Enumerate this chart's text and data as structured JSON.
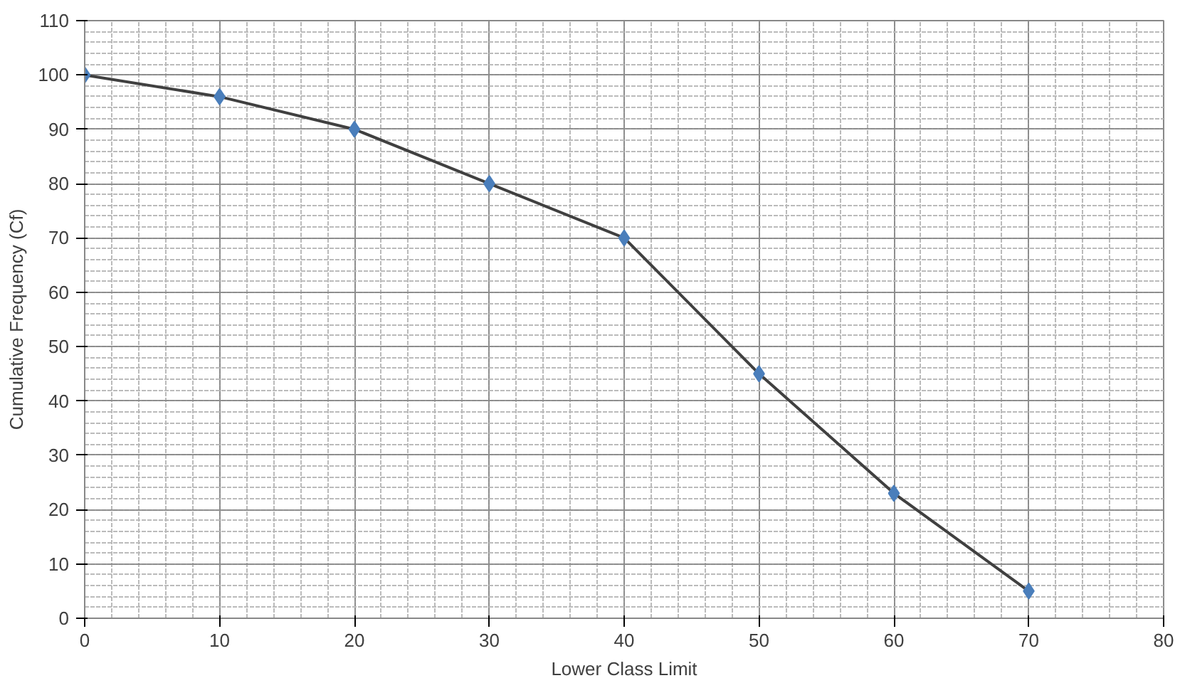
{
  "chart_data": {
    "type": "line",
    "xlabel": "Lower Class Limit",
    "ylabel": "Cumulative Frequency (Cf)",
    "x": [
      0,
      10,
      20,
      30,
      40,
      50,
      60,
      70
    ],
    "series": [
      {
        "color": "#4a7ebb",
        "values": [
          100,
          96,
          90,
          80,
          70,
          45,
          23,
          5
        ]
      }
    ],
    "xlim": [
      0,
      80
    ],
    "xticks": [
      0,
      10,
      20,
      30,
      40,
      50,
      60,
      70,
      80
    ],
    "ylim": [
      0,
      110
    ],
    "yticks": [
      0,
      10,
      20,
      30,
      40,
      50,
      60,
      70,
      80,
      90,
      100,
      110
    ],
    "grid": true,
    "marker": "diamond"
  }
}
